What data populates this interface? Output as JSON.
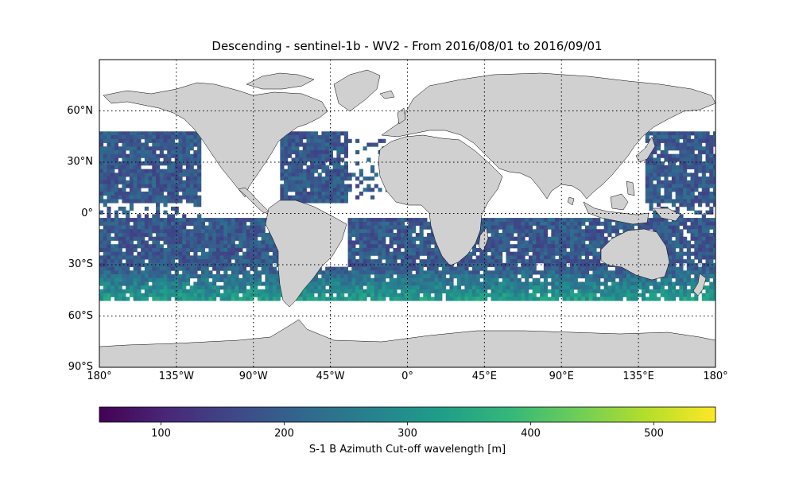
{
  "title": "Descending - sentinel-1b - WV2 - From 2016/08/01 to 2016/09/01",
  "map": {
    "projection": "PlateCarree",
    "lon_range": [
      -180,
      180
    ],
    "lat_range": [
      -90,
      90
    ],
    "gridlines": "dotted",
    "land_color": "#d0d0d0",
    "no_data_color": "#ffffff",
    "lat_ticks": [
      {
        "value": 60,
        "label": "60°N"
      },
      {
        "value": 30,
        "label": "30°N"
      },
      {
        "value": 0,
        "label": "0°"
      },
      {
        "value": -30,
        "label": "30°S"
      },
      {
        "value": -60,
        "label": "60°S"
      },
      {
        "value": -90,
        "label": "90°S"
      }
    ],
    "lon_ticks": [
      {
        "value": -180,
        "label": "180°"
      },
      {
        "value": -135,
        "label": "135°W"
      },
      {
        "value": -90,
        "label": "90°W"
      },
      {
        "value": -45,
        "label": "45°W"
      },
      {
        "value": 0,
        "label": "0°"
      },
      {
        "value": 45,
        "label": "45°E"
      },
      {
        "value": 90,
        "label": "90°E"
      },
      {
        "value": 135,
        "label": "135°E"
      },
      {
        "value": 180,
        "label": "180°"
      }
    ]
  },
  "colorbar": {
    "label": "S-1 B Azimuth Cut-off wavelength [m]",
    "colormap": "viridis",
    "range": [
      50,
      550
    ],
    "ticks": [
      {
        "value": 100,
        "label": "100"
      },
      {
        "value": 200,
        "label": "200"
      },
      {
        "value": 300,
        "label": "300"
      },
      {
        "value": 400,
        "label": "400"
      },
      {
        "value": 500,
        "label": "500"
      }
    ],
    "stops": [
      "#440154",
      "#482878",
      "#3e4989",
      "#31688e",
      "#26828e",
      "#1f9e89",
      "#35b779",
      "#6ece58",
      "#b5de2b",
      "#fde725"
    ]
  }
}
